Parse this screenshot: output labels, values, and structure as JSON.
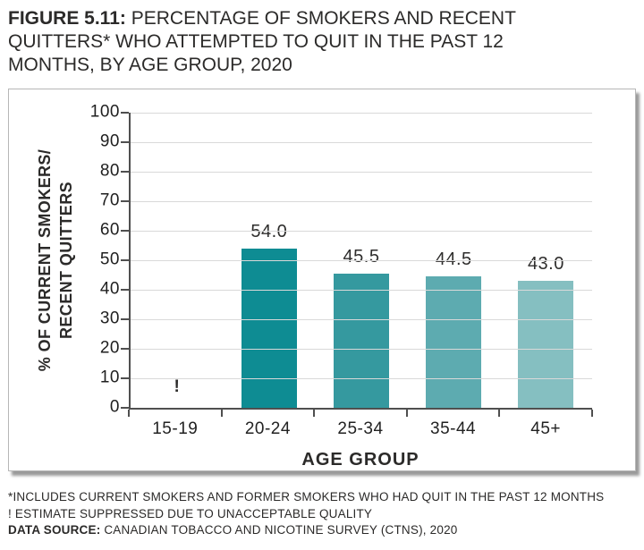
{
  "title": {
    "prefix": "FIGURE 5.11:",
    "text": " PERCENTAGE OF SMOKERS AND RECENT QUITTERS* WHO ATTEMPTED TO QUIT IN THE PAST 12 MONTHS, BY AGE GROUP, 2020"
  },
  "chart_data": {
    "type": "bar",
    "categories": [
      "15-19",
      "20-24",
      "25-34",
      "35-44",
      "45+"
    ],
    "values": [
      null,
      54.0,
      45.5,
      44.5,
      43.0
    ],
    "value_labels": [
      "!",
      "54.0",
      "45.5",
      "44.5",
      "43.0"
    ],
    "suppressed_marker": "!",
    "bar_colors": [
      null,
      "#0e8c93",
      "#35999f",
      "#5dabb0",
      "#85bfc1"
    ],
    "xlabel": "AGE GROUP",
    "ylabel": "% OF CURRENT SMOKERS/ RECENT QUITTERS",
    "ylabel_line1": "% OF CURRENT SMOKERS/",
    "ylabel_line2": "RECENT QUITTERS",
    "ylim": [
      0,
      100
    ],
    "ytick_step": 10,
    "grid": true,
    "legend": false
  },
  "footnotes": {
    "line1": "*INCLUDES CURRENT SMOKERS AND FORMER SMOKERS WHO HAD QUIT IN THE PAST 12 MONTHS",
    "line2": "! ESTIMATE SUPPRESSED DUE TO UNACCEPTABLE QUALITY",
    "line3_label": "DATA SOURCE:",
    "line3_text": " CANADIAN TOBACCO AND NICOTINE SURVEY (CTNS), 2020"
  }
}
